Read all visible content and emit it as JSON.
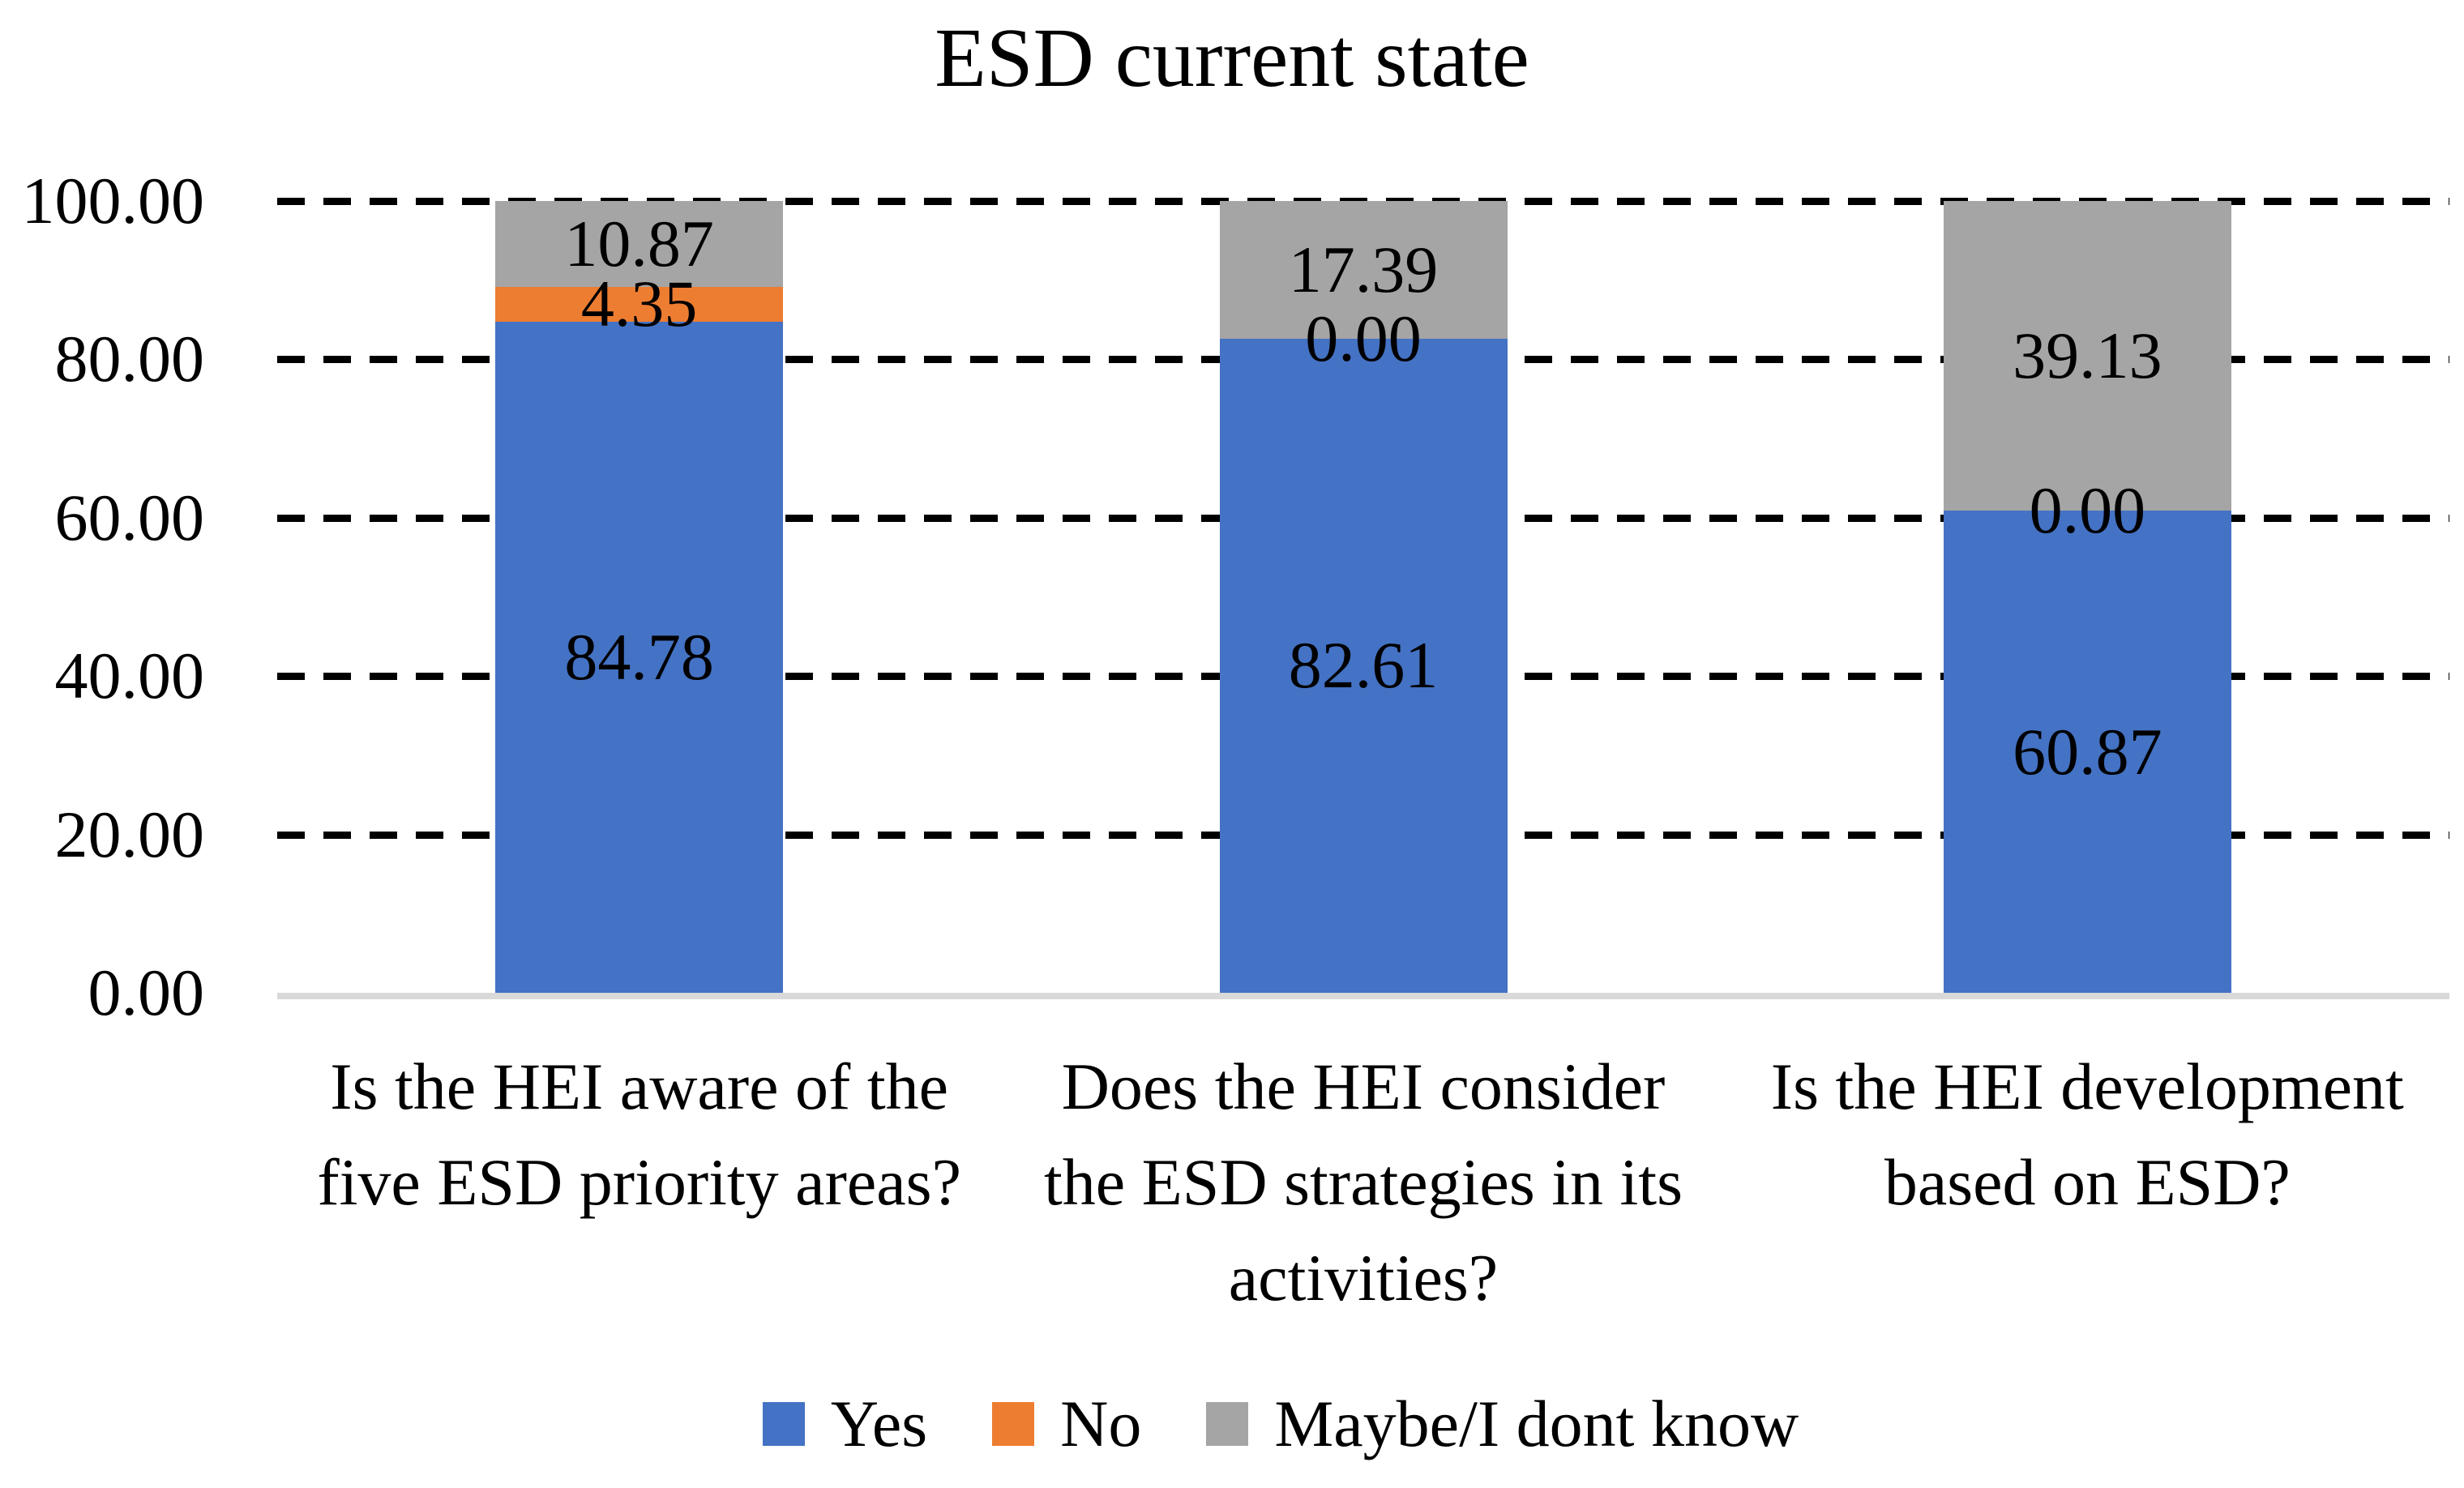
{
  "chart_data": {
    "type": "bar",
    "stacked": true,
    "title": "ESD current state",
    "categories": [
      "Is the HEI aware of the five ESD priority areas?",
      "Does the HEI consider the ESD strategies in its activities?",
      "Is the HEI development based on ESD?"
    ],
    "category_lines": [
      [
        "Is the HEI aware of the",
        "five ESD priority areas?"
      ],
      [
        "Does the HEI consider",
        "the ESD strategies in its",
        "activities?"
      ],
      [
        "Is the HEI development",
        "based on ESD?"
      ]
    ],
    "series": [
      {
        "name": "Yes",
        "color": "#4472C4",
        "values": [
          84.78,
          82.61,
          60.87
        ]
      },
      {
        "name": "No",
        "color": "#ED7D31",
        "values": [
          4.35,
          0.0,
          0.0
        ]
      },
      {
        "name": "Maybe/I dont know",
        "color": "#A5A5A5",
        "values": [
          10.87,
          17.39,
          39.13
        ]
      }
    ],
    "value_label_decimals": 2,
    "xlabel": "",
    "ylabel": "",
    "ylim": [
      0,
      100
    ],
    "yticks": [
      0,
      20,
      40,
      60,
      80,
      100
    ],
    "ytick_decimals": 2,
    "grid": {
      "style": "dashed",
      "color": "#000000"
    },
    "baseline_color": "#D9D9D9",
    "legend_position": "bottom"
  }
}
